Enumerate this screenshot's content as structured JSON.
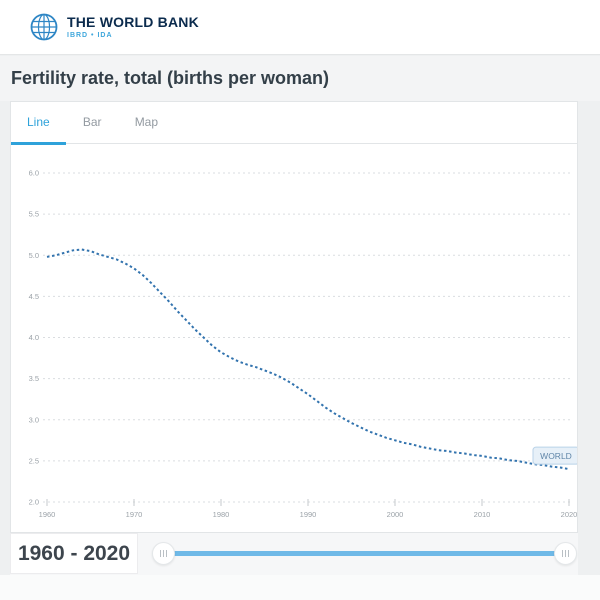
{
  "header": {
    "brand": "THE WORLD BANK",
    "sub_brand": "IBRD • IDA"
  },
  "page": {
    "title": "Fertility rate, total (births per woman)"
  },
  "tabs": [
    {
      "label": "Line",
      "active": true
    },
    {
      "label": "Bar",
      "active": false
    },
    {
      "label": "Map",
      "active": false
    }
  ],
  "footer": {
    "range_label": "1960 - 2020"
  },
  "colors": {
    "accent_blue": "#2ea2da",
    "line_blue": "#3273ae",
    "slider_blue": "#6fb9e7",
    "brand_navy": "#0b2b4d",
    "brand_light_blue": "#3fa7dc",
    "grid_gray": "#dadde0",
    "axis_text_gray": "#9ba2a8"
  },
  "chart_data": {
    "type": "line",
    "title": "Fertility rate, total (births per woman)",
    "x_start": 1960,
    "x_end": 2020,
    "x_tick_step": 10,
    "x_ticks": [
      1960,
      1970,
      1980,
      1990,
      2000,
      2010,
      2020
    ],
    "ylim": [
      2.0,
      6.0
    ],
    "y_tick_step": 0.5,
    "y_ticks": [
      2.0,
      2.5,
      3.0,
      3.5,
      4.0,
      4.5,
      5.0,
      5.5,
      6.0
    ],
    "grid": "dashed-horizontal",
    "legend_position": "end-of-line-badge",
    "line_color": "#3273ae",
    "line_style": "dotted",
    "series": [
      {
        "name": "WORLD",
        "values": [
          4.98,
          5.0,
          5.03,
          5.06,
          5.07,
          5.05,
          5.01,
          4.98,
          4.95,
          4.9,
          4.84,
          4.76,
          4.66,
          4.55,
          4.44,
          4.32,
          4.21,
          4.1,
          4.0,
          3.9,
          3.82,
          3.76,
          3.71,
          3.67,
          3.64,
          3.6,
          3.56,
          3.51,
          3.45,
          3.38,
          3.31,
          3.23,
          3.15,
          3.08,
          3.02,
          2.96,
          2.91,
          2.86,
          2.82,
          2.78,
          2.75,
          2.72,
          2.7,
          2.67,
          2.65,
          2.63,
          2.62,
          2.6,
          2.59,
          2.57,
          2.56,
          2.54,
          2.53,
          2.51,
          2.5,
          2.48,
          2.46,
          2.45,
          2.43,
          2.42,
          2.4
        ]
      }
    ]
  }
}
